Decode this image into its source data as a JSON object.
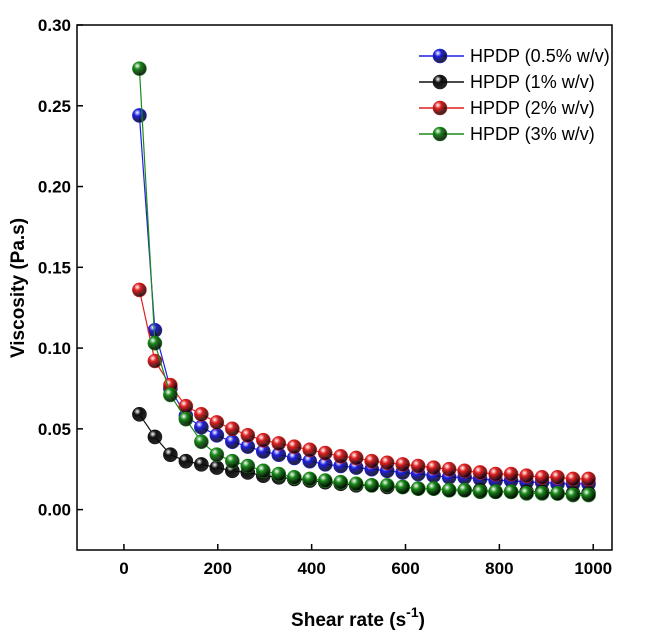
{
  "chart_data": {
    "type": "line",
    "title": "",
    "xlabel": "Shear rate (s",
    "xlabel_sup": "-1",
    "xlabel_close": ")",
    "ylabel": "Viscosity (Pa.s)",
    "xlim": [
      -100,
      1040
    ],
    "ylim": [
      -0.025,
      0.3
    ],
    "x_ticks": [
      0,
      200,
      400,
      600,
      800,
      1000
    ],
    "x_tick_labels": [
      "0",
      "200",
      "400",
      "600",
      "800",
      "1000"
    ],
    "y_ticks": [
      0.0,
      0.05,
      0.1,
      0.15,
      0.2,
      0.25,
      0.3
    ],
    "y_tick_labels": [
      "0.00",
      "0.05",
      "0.10",
      "0.15",
      "0.20",
      "0.25",
      "0.30"
    ],
    "grid": false,
    "legend_position": "top-right",
    "x": [
      33,
      66,
      99,
      132,
      165,
      198,
      231,
      264,
      297,
      330,
      363,
      396,
      429,
      462,
      495,
      528,
      561,
      594,
      627,
      660,
      693,
      726,
      759,
      792,
      825,
      858,
      891,
      924,
      957,
      990
    ],
    "series": [
      {
        "name": "HPDP (0.5% w/v)",
        "color": "#1f1fe0",
        "values": [
          0.244,
          0.111,
          0.075,
          0.058,
          0.051,
          0.046,
          0.042,
          0.039,
          0.036,
          0.034,
          0.032,
          0.03,
          0.028,
          0.027,
          0.026,
          0.025,
          0.024,
          0.023,
          0.022,
          0.021,
          0.02,
          0.02,
          0.019,
          0.018,
          0.018,
          0.017,
          0.017,
          0.016,
          0.016,
          0.016
        ]
      },
      {
        "name": "HPDP (1% w/v)",
        "color": "#111111",
        "values": [
          0.059,
          0.045,
          0.034,
          0.03,
          0.028,
          0.026,
          0.024,
          0.023,
          0.021,
          0.02,
          0.019,
          0.018,
          0.017,
          0.016,
          0.015,
          0.015,
          0.014,
          0.014,
          0.013,
          0.013,
          0.012,
          0.012,
          0.012,
          0.011,
          0.011,
          0.011,
          0.011,
          0.01,
          0.01,
          0.01
        ]
      },
      {
        "name": "HPDP (2% w/v)",
        "color": "#e01f1f",
        "values": [
          0.136,
          0.092,
          0.077,
          0.064,
          0.059,
          0.054,
          0.05,
          0.046,
          0.043,
          0.041,
          0.039,
          0.037,
          0.035,
          0.033,
          0.032,
          0.03,
          0.029,
          0.028,
          0.027,
          0.026,
          0.025,
          0.024,
          0.023,
          0.022,
          0.022,
          0.021,
          0.02,
          0.02,
          0.019,
          0.019
        ]
      },
      {
        "name": "HPDP (3% w/v)",
        "color": "#1a8a1a",
        "values": [
          0.273,
          0.103,
          0.071,
          0.056,
          0.042,
          0.034,
          0.03,
          0.027,
          0.024,
          0.022,
          0.02,
          0.019,
          0.018,
          0.017,
          0.016,
          0.015,
          0.015,
          0.014,
          0.013,
          0.013,
          0.012,
          0.012,
          0.011,
          0.011,
          0.011,
          0.01,
          0.01,
          0.01,
          0.009,
          0.009
        ]
      }
    ]
  }
}
